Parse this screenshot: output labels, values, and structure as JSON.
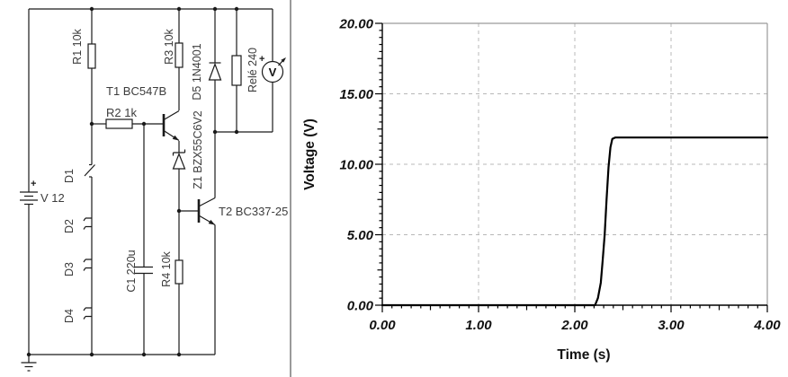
{
  "window": {
    "background": "#ffffff",
    "divider_color": "#9a9a9a"
  },
  "circuit": {
    "labels": {
      "r1": "R1 10k",
      "r2": "R2 1k",
      "r3": "R3 10k",
      "r4": "R4 10k",
      "c1": "C1 220u",
      "d1": "D1",
      "d2": "D2",
      "d3": "D3",
      "d4": "D4",
      "d5": "D5 1N4001",
      "z1": "Z1 BZX55C6V2",
      "t1": "T1 BC547B",
      "t2": "T2 BC337-25",
      "relay": "Relé 240",
      "battery": "V 12",
      "battery_plus": "+",
      "voltmeter_symbol": "V",
      "voltmeter_plus": "+"
    }
  },
  "chart_data": {
    "type": "line",
    "title": "",
    "xlabel": "Time (s)",
    "ylabel": "Voltage (V)",
    "xlim": [
      0,
      4
    ],
    "ylim": [
      0,
      20
    ],
    "x_ticks": [
      0,
      1,
      2,
      3,
      4
    ],
    "y_ticks": [
      0,
      5,
      10,
      15,
      20
    ],
    "x_tick_labels": [
      "0.00",
      "1.00",
      "2.00",
      "3.00",
      "4.00"
    ],
    "y_tick_labels": [
      "0.00",
      "5.00",
      "10.00",
      "15.00",
      "20.00"
    ],
    "x_minor_step": 0.1,
    "y_minor_step": 0.5,
    "grid": true,
    "legend_position": "none",
    "colors": {
      "curve": "#000000",
      "grid": "#b8b8b8",
      "frame": "#9a9a9a",
      "axis": "#000000"
    },
    "series": [
      {
        "name": "voltage",
        "color": "#000000",
        "points": [
          [
            0,
            0
          ],
          [
            2.21,
            0
          ],
          [
            2.24,
            0.5
          ],
          [
            2.27,
            1.6
          ],
          [
            2.29,
            3.2
          ],
          [
            2.31,
            5.0
          ],
          [
            2.33,
            7.5
          ],
          [
            2.35,
            9.8
          ],
          [
            2.37,
            11.2
          ],
          [
            2.39,
            11.8
          ],
          [
            2.42,
            11.9
          ],
          [
            4.0,
            11.9
          ]
        ]
      }
    ]
  }
}
